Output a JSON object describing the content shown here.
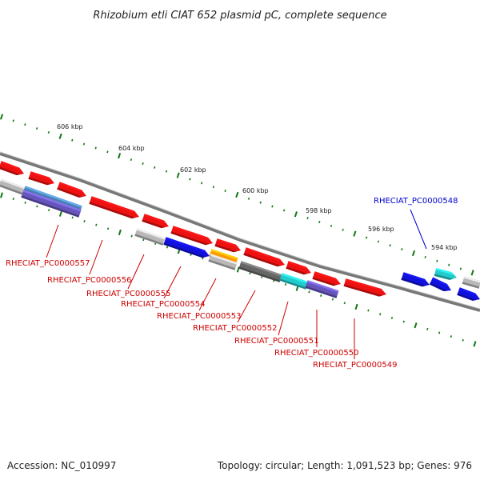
{
  "title": "Rhizobium etli CIAT 652 plasmid pC, complete sequence",
  "footer": {
    "accession": "Accession: NC_010997",
    "summary": "Topology: circular; Length: 1,091,523 bp; Genes: 976"
  },
  "scale_labels": [
    "606 kbp",
    "604 kbp",
    "602 kbp",
    "600 kbp",
    "598 kbp",
    "596 kbp",
    "594 kbp"
  ],
  "gene_labels": [
    {
      "id": "RHECIAT_PC0000557",
      "color": "#cc0000"
    },
    {
      "id": "RHECIAT_PC0000556",
      "color": "#cc0000"
    },
    {
      "id": "RHECIAT_PC0000555",
      "color": "#cc0000"
    },
    {
      "id": "RHECIAT_PC0000554",
      "color": "#cc0000"
    },
    {
      "id": "RHECIAT_PC0000553",
      "color": "#cc0000"
    },
    {
      "id": "RHECIAT_PC0000552",
      "color": "#cc0000"
    },
    {
      "id": "RHECIAT_PC0000551",
      "color": "#cc0000"
    },
    {
      "id": "RHECIAT_PC0000550",
      "color": "#cc0000"
    },
    {
      "id": "RHECIAT_PC0000549",
      "color": "#cc0000"
    },
    {
      "id": "RHECIAT_PC0000548",
      "color": "#0000cc"
    }
  ],
  "colors": {
    "red": "#ee1111",
    "gray": "#b8b8b8",
    "dark_gray": "#666666",
    "blue": "#1111dd",
    "steel_blue": "#4a7fb0",
    "purple": "#6655bb",
    "orange": "#ff9900",
    "cyan": "#22cccc",
    "backbone": "#888888",
    "tick_green": "#117711"
  }
}
